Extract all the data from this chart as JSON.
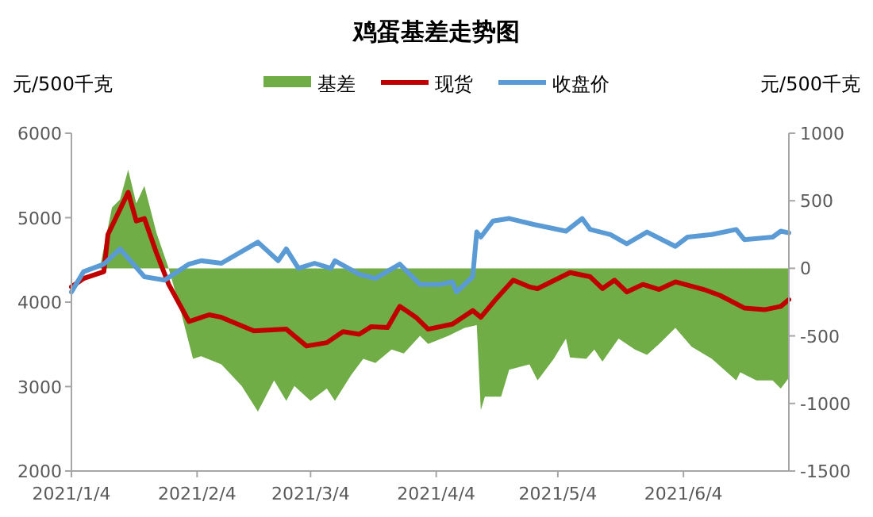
{
  "chart_data": {
    "type": "line",
    "title": "鸡蛋基差走势图",
    "ylabel": "元/500千克",
    "y2label": "元/500千克",
    "legend": "top",
    "xlim": [
      "2021-01-04",
      "2021-06-30"
    ],
    "xticks": [
      {
        "value": "2021-01-04",
        "label": "2021/1/4"
      },
      {
        "value": "2021-02-04",
        "label": "2021/2/4"
      },
      {
        "value": "2021-03-04",
        "label": "2021/3/4"
      },
      {
        "value": "2021-04-04",
        "label": "2021/4/4"
      },
      {
        "value": "2021-05-04",
        "label": "2021/5/4"
      },
      {
        "value": "2021-06-04",
        "label": "2021/6/4"
      }
    ],
    "ylim": [
      2000,
      6000
    ],
    "yticks": [
      2000,
      3000,
      4000,
      5000,
      6000
    ],
    "y2lim": [
      -1500,
      1000
    ],
    "y2ticks": [
      -1500,
      -1000,
      -500,
      0,
      500,
      1000
    ],
    "series": [
      {
        "name": "基差",
        "type": "area",
        "axis": "y2",
        "color": "#70ad47",
        "x": [
          "2021-01-04",
          "2021-01-11",
          "2021-01-14",
          "2021-01-16",
          "2021-01-18",
          "2021-01-20",
          "2021-01-22",
          "2021-01-25",
          "2021-01-28",
          "2021-01-31",
          "2021-02-03",
          "2021-02-05",
          "2021-02-10",
          "2021-02-15",
          "2021-02-19",
          "2021-02-23",
          "2021-02-26",
          "2021-02-28",
          "2021-03-04",
          "2021-03-08",
          "2021-03-10",
          "2021-03-14",
          "2021-03-17",
          "2021-03-20",
          "2021-03-24",
          "2021-03-27",
          "2021-03-31",
          "2021-04-02",
          "2021-04-07",
          "2021-04-11",
          "2021-04-14",
          "2021-04-15",
          "2021-04-16",
          "2021-04-20",
          "2021-04-22",
          "2021-04-27",
          "2021-04-29",
          "2021-05-03",
          "2021-05-06",
          "2021-05-07",
          "2021-05-11",
          "2021-05-13",
          "2021-05-15",
          "2021-05-19",
          "2021-05-23",
          "2021-05-26",
          "2021-05-29",
          "2021-06-02",
          "2021-06-06",
          "2021-06-11",
          "2021-06-17",
          "2021-06-18",
          "2021-06-22",
          "2021-06-26",
          "2021-06-28",
          "2021-06-30"
        ],
        "values": [
          0,
          0,
          450,
          510,
          730,
          480,
          610,
          260,
          0,
          -320,
          -670,
          -650,
          -710,
          -870,
          -1060,
          -830,
          -980,
          -870,
          -980,
          -890,
          -980,
          -790,
          -670,
          -700,
          -600,
          -630,
          -500,
          -560,
          -500,
          -440,
          -420,
          -1050,
          -950,
          -950,
          -750,
          -710,
          -830,
          -670,
          -520,
          -660,
          -670,
          -600,
          -690,
          -520,
          -600,
          -640,
          -560,
          -440,
          -580,
          -670,
          -830,
          -770,
          -830,
          -830,
          -890,
          -810
        ]
      },
      {
        "name": "现货",
        "color": "#c00000",
        "x": [
          "2021-01-04",
          "2021-01-07",
          "2021-01-12",
          "2021-01-13",
          "2021-01-18",
          "2021-01-20",
          "2021-01-22",
          "2021-01-25",
          "2021-01-28",
          "2021-02-02",
          "2021-02-07",
          "2021-02-10",
          "2021-02-18",
          "2021-02-26",
          "2021-03-03",
          "2021-03-08",
          "2021-03-12",
          "2021-03-16",
          "2021-03-19",
          "2021-03-23",
          "2021-03-26",
          "2021-03-30",
          "2021-04-02",
          "2021-04-08",
          "2021-04-13",
          "2021-04-15",
          "2021-04-19",
          "2021-04-23",
          "2021-04-27",
          "2021-04-29",
          "2021-05-07",
          "2021-05-12",
          "2021-05-15",
          "2021-05-18",
          "2021-05-21",
          "2021-05-25",
          "2021-05-29",
          "2021-06-02",
          "2021-06-09",
          "2021-06-13",
          "2021-06-19",
          "2021-06-24",
          "2021-06-28",
          "2021-06-30"
        ],
        "values": [
          4180,
          4280,
          4360,
          4800,
          5300,
          4960,
          4990,
          4580,
          4210,
          3770,
          3850,
          3820,
          3660,
          3680,
          3480,
          3520,
          3650,
          3620,
          3710,
          3700,
          3950,
          3820,
          3680,
          3740,
          3900,
          3820,
          4050,
          4260,
          4180,
          4160,
          4350,
          4300,
          4160,
          4260,
          4120,
          4210,
          4150,
          4240,
          4150,
          4080,
          3930,
          3910,
          3950,
          4030
        ]
      },
      {
        "name": "收盘价",
        "color": "#5b9bd5",
        "x": [
          "2021-01-04",
          "2021-01-07",
          "2021-01-12",
          "2021-01-16",
          "2021-01-18",
          "2021-01-22",
          "2021-01-27",
          "2021-02-02",
          "2021-02-05",
          "2021-02-10",
          "2021-02-19",
          "2021-02-24",
          "2021-02-26",
          "2021-03-01",
          "2021-03-05",
          "2021-03-09",
          "2021-03-10",
          "2021-03-16",
          "2021-03-20",
          "2021-03-26",
          "2021-03-31",
          "2021-04-05",
          "2021-04-08",
          "2021-04-09",
          "2021-04-13",
          "2021-04-14",
          "2021-04-15",
          "2021-04-18",
          "2021-04-22",
          "2021-04-28",
          "2021-05-06",
          "2021-05-10",
          "2021-05-12",
          "2021-05-17",
          "2021-05-21",
          "2021-05-26",
          "2021-06-02",
          "2021-06-05",
          "2021-06-11",
          "2021-06-17",
          "2021-06-19",
          "2021-06-26",
          "2021-06-28",
          "2021-06-30"
        ],
        "values": [
          4120,
          4360,
          4450,
          4630,
          4520,
          4300,
          4260,
          4450,
          4490,
          4460,
          4710,
          4490,
          4630,
          4400,
          4460,
          4400,
          4490,
          4330,
          4280,
          4450,
          4210,
          4210,
          4240,
          4120,
          4300,
          4830,
          4770,
          4960,
          4990,
          4920,
          4840,
          4990,
          4860,
          4800,
          4690,
          4830,
          4660,
          4770,
          4800,
          4860,
          4740,
          4770,
          4840,
          4820
        ]
      }
    ]
  }
}
